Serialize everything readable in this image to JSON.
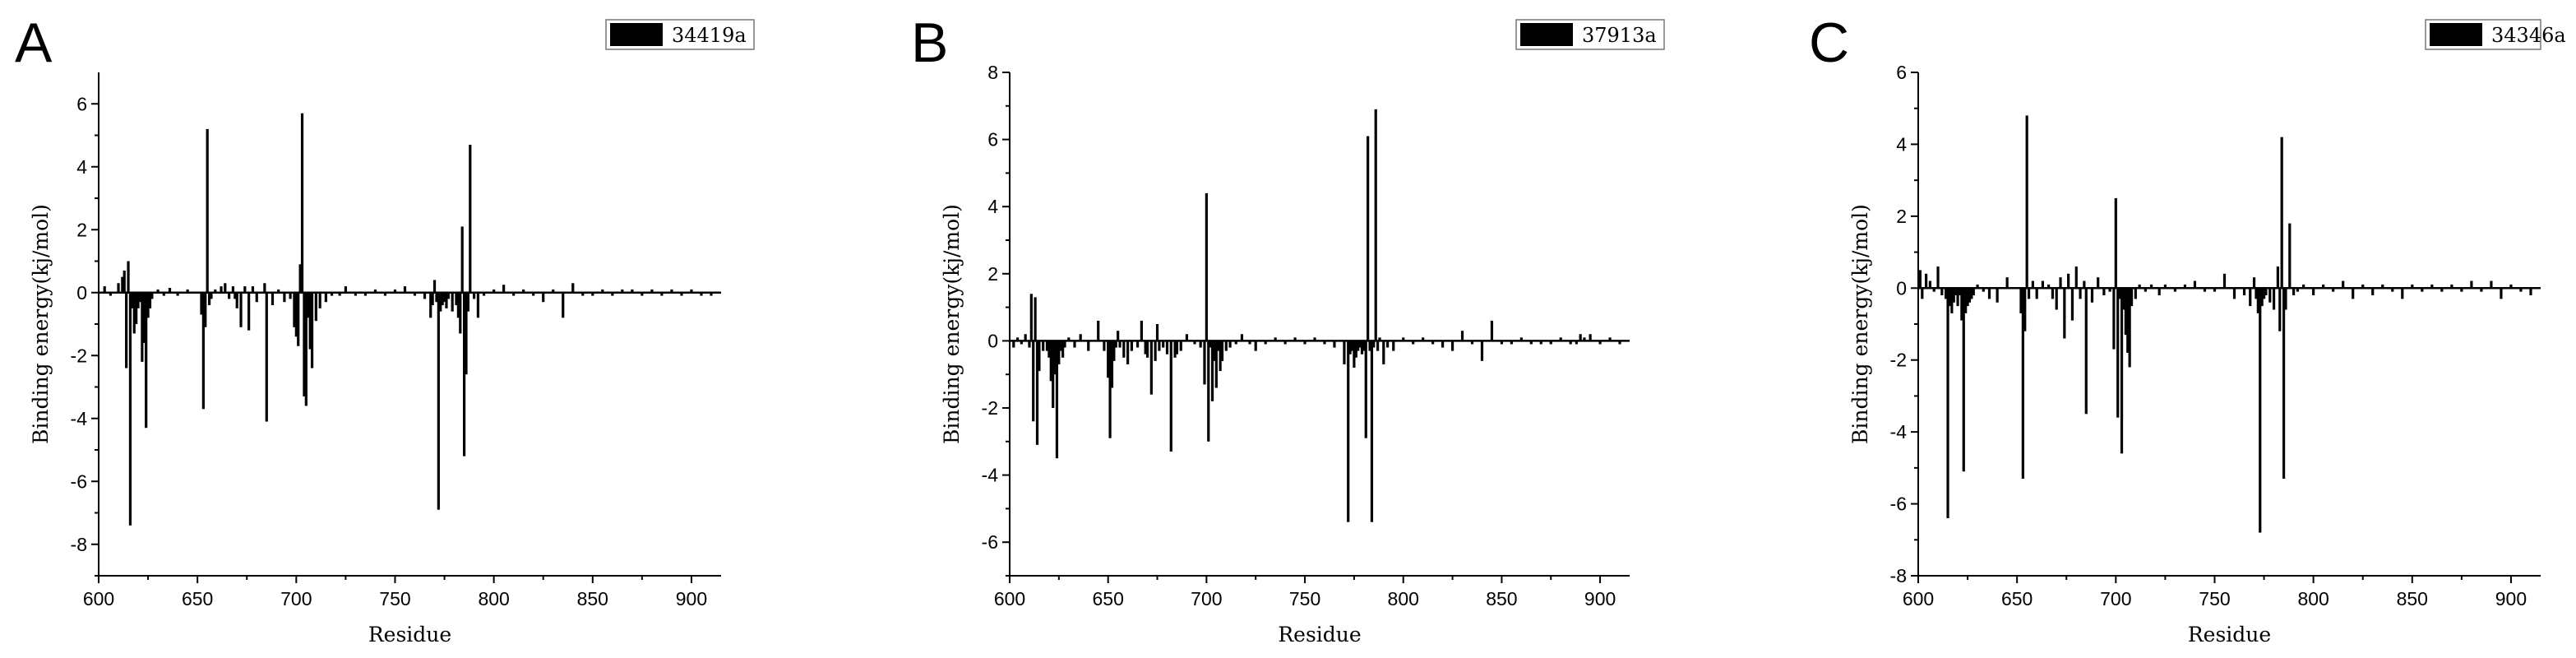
{
  "chart_data": [
    {
      "type": "bar",
      "panel": "A",
      "legend": "34419a",
      "xlabel": "Residue",
      "ylabel": "Binding energy(kj/mol)",
      "xlim": [
        600,
        915
      ],
      "ylim": [
        -9,
        7
      ],
      "xticks": [
        600,
        650,
        700,
        750,
        800,
        850,
        900
      ],
      "yticks": [
        -8,
        -6,
        -4,
        -2,
        0,
        2,
        4,
        6
      ],
      "x": [
        603,
        606,
        610,
        612,
        613,
        614,
        615,
        616,
        617,
        618,
        619,
        620,
        621,
        622,
        623,
        624,
        625,
        626,
        627,
        630,
        633,
        636,
        640,
        645,
        652,
        653,
        654,
        655,
        656,
        657,
        659,
        662,
        664,
        666,
        668,
        669,
        670,
        672,
        674,
        676,
        678,
        680,
        684,
        685,
        688,
        691,
        694,
        697,
        699,
        700,
        701,
        702,
        703,
        704,
        705,
        706,
        707,
        708,
        710,
        712,
        715,
        718,
        722,
        725,
        730,
        735,
        740,
        745,
        750,
        755,
        760,
        765,
        768,
        769,
        770,
        771,
        772,
        773,
        774,
        775,
        776,
        777,
        779,
        781,
        782,
        783,
        784,
        785,
        786,
        787,
        788,
        790,
        792,
        795,
        800,
        805,
        810,
        815,
        820,
        825,
        830,
        835,
        840,
        845,
        850,
        855,
        860,
        865,
        870,
        875,
        880,
        885,
        890,
        895,
        900,
        905,
        910
      ],
      "values": [
        0.2,
        -0.1,
        0.3,
        0.5,
        0.7,
        -2.4,
        1.0,
        -7.4,
        -0.5,
        -1.3,
        -1.0,
        -0.5,
        -0.3,
        -2.2,
        -1.6,
        -4.3,
        -0.8,
        -0.5,
        -0.2,
        0.1,
        -0.1,
        0.15,
        -0.1,
        0.1,
        -0.7,
        -3.7,
        -1.1,
        5.2,
        -0.4,
        -0.2,
        0.1,
        0.2,
        0.3,
        -0.2,
        0.2,
        -0.2,
        -0.5,
        -1.1,
        0.2,
        -1.2,
        0.2,
        -0.3,
        0.3,
        -4.1,
        -0.4,
        0.1,
        -0.3,
        -0.2,
        -1.1,
        -1.4,
        -1.7,
        0.9,
        5.7,
        -3.3,
        -3.6,
        -0.8,
        -1.8,
        -2.4,
        -0.9,
        -0.5,
        -0.3,
        -0.1,
        -0.1,
        0.2,
        -0.1,
        -0.1,
        0.1,
        -0.1,
        0.1,
        0.2,
        -0.1,
        -0.2,
        -0.8,
        -0.4,
        0.4,
        -0.3,
        -6.9,
        -0.6,
        -0.4,
        -0.3,
        -0.5,
        -0.2,
        -0.6,
        -0.4,
        -0.8,
        -1.3,
        2.1,
        -5.2,
        -2.6,
        -0.6,
        4.7,
        -0.2,
        -0.8,
        -0.1,
        0.1,
        0.25,
        -0.1,
        0.1,
        -0.1,
        -0.3,
        0.1,
        -0.8,
        0.3,
        -0.1,
        -0.1,
        0.1,
        -0.1,
        0.1,
        0.1,
        -0.1,
        0.1,
        -0.1,
        0.1,
        -0.1,
        0.1,
        -0.1,
        -0.1
      ]
    },
    {
      "type": "bar",
      "panel": "B",
      "legend": "37913a",
      "xlabel": "Residue",
      "ylabel": "Binding energy(kj/mol)",
      "xlim": [
        600,
        915
      ],
      "ylim": [
        -7,
        8
      ],
      "xticks": [
        600,
        650,
        700,
        750,
        800,
        850,
        900
      ],
      "yticks": [
        -6,
        -4,
        -2,
        0,
        2,
        4,
        6,
        8
      ],
      "x": [
        602,
        604,
        606,
        608,
        610,
        611,
        612,
        613,
        614,
        615,
        617,
        619,
        620,
        621,
        622,
        623,
        624,
        625,
        626,
        627,
        628,
        630,
        633,
        636,
        640,
        645,
        648,
        650,
        651,
        652,
        653,
        654,
        655,
        656,
        658,
        660,
        662,
        665,
        667,
        669,
        670,
        672,
        674,
        675,
        676,
        678,
        680,
        682,
        684,
        685,
        687,
        690,
        694,
        697,
        699,
        700,
        701,
        702,
        703,
        704,
        705,
        706,
        707,
        708,
        710,
        712,
        715,
        718,
        722,
        725,
        730,
        735,
        740,
        745,
        750,
        755,
        760,
        765,
        770,
        772,
        773,
        774,
        775,
        776,
        777,
        778,
        779,
        780,
        781,
        782,
        783,
        784,
        785,
        786,
        787,
        788,
        790,
        792,
        795,
        800,
        805,
        810,
        815,
        820,
        825,
        830,
        835,
        840,
        845,
        850,
        855,
        860,
        865,
        870,
        875,
        880,
        885,
        888,
        890,
        892,
        895,
        900,
        905,
        910
      ],
      "values": [
        -0.2,
        0.1,
        -0.1,
        0.2,
        -0.2,
        1.4,
        -2.4,
        1.3,
        -3.1,
        -0.9,
        -0.3,
        -0.3,
        -0.5,
        -1.2,
        -2.0,
        -1.0,
        -3.5,
        -0.7,
        -0.3,
        -0.5,
        -0.2,
        0.1,
        -0.2,
        0.2,
        -0.3,
        0.6,
        -0.3,
        -1.1,
        -2.9,
        -1.4,
        -0.6,
        -0.2,
        0.3,
        -0.2,
        -0.5,
        -0.7,
        -0.3,
        -0.2,
        0.6,
        -0.4,
        -0.5,
        -1.6,
        -0.6,
        0.5,
        -0.3,
        -0.2,
        -0.4,
        -3.3,
        -0.5,
        -0.4,
        -0.3,
        0.2,
        -0.1,
        -0.2,
        -1.3,
        4.4,
        -3.0,
        -0.2,
        -1.8,
        -0.6,
        -1.4,
        -0.3,
        -0.9,
        -0.6,
        -0.3,
        -0.2,
        -0.1,
        0.2,
        -0.1,
        -0.3,
        -0.1,
        0.1,
        -0.1,
        0.1,
        -0.1,
        0.1,
        -0.1,
        -0.2,
        -0.7,
        -5.4,
        -0.4,
        -0.3,
        -0.8,
        -0.5,
        -0.3,
        -0.2,
        -0.4,
        -0.3,
        -2.9,
        6.1,
        -0.3,
        -5.4,
        -0.2,
        6.9,
        -0.3,
        0.1,
        -0.7,
        -0.2,
        -0.3,
        0.1,
        -0.1,
        0.1,
        -0.1,
        -0.2,
        -0.3,
        0.3,
        -0.1,
        -0.6,
        0.6,
        -0.1,
        -0.1,
        0.1,
        -0.1,
        -0.1,
        -0.1,
        0.1,
        -0.1,
        -0.1,
        0.2,
        0.1,
        0.2,
        -0.1,
        0.1,
        -0.1
      ]
    },
    {
      "type": "bar",
      "panel": "C",
      "legend": "34346a",
      "xlabel": "Residue",
      "ylabel": "Binding energy(kj/mol)",
      "xlim": [
        600,
        915
      ],
      "ylim": [
        -8,
        6
      ],
      "xticks": [
        600,
        650,
        700,
        750,
        800,
        850,
        900
      ],
      "yticks": [
        -8,
        -6,
        -4,
        -2,
        0,
        2,
        4,
        6
      ],
      "x": [
        601,
        602,
        604,
        606,
        608,
        610,
        612,
        614,
        615,
        616,
        617,
        618,
        619,
        620,
        621,
        622,
        623,
        624,
        625,
        626,
        627,
        628,
        630,
        633,
        636,
        640,
        645,
        652,
        653,
        654,
        655,
        656,
        658,
        660,
        663,
        666,
        668,
        670,
        672,
        674,
        676,
        678,
        680,
        682,
        684,
        685,
        688,
        691,
        694,
        697,
        699,
        700,
        701,
        702,
        703,
        704,
        705,
        706,
        707,
        708,
        710,
        712,
        715,
        718,
        722,
        725,
        730,
        735,
        740,
        745,
        750,
        755,
        760,
        765,
        768,
        770,
        771,
        772,
        773,
        774,
        775,
        776,
        778,
        780,
        782,
        783,
        784,
        785,
        786,
        788,
        790,
        792,
        795,
        800,
        805,
        810,
        815,
        820,
        825,
        830,
        835,
        840,
        845,
        850,
        855,
        860,
        865,
        870,
        875,
        880,
        885,
        890,
        895,
        900,
        905,
        910
      ],
      "values": [
        0.5,
        -0.3,
        0.4,
        0.2,
        -0.1,
        0.6,
        -0.2,
        -0.3,
        -6.4,
        -0.5,
        -0.7,
        -0.4,
        -0.2,
        -0.5,
        -0.2,
        -0.9,
        -5.1,
        -0.7,
        -0.5,
        -0.4,
        -0.3,
        -0.2,
        0.1,
        -0.1,
        -0.3,
        -0.4,
        0.3,
        -0.7,
        -5.3,
        -1.2,
        4.8,
        -0.3,
        0.2,
        -0.3,
        0.2,
        0.1,
        -0.3,
        -0.6,
        0.3,
        -1.4,
        0.4,
        -0.9,
        0.6,
        -0.3,
        0.2,
        -3.5,
        -0.4,
        0.3,
        -0.2,
        -0.1,
        -1.7,
        2.5,
        -3.6,
        -0.3,
        -4.6,
        -0.6,
        -1.3,
        -1.8,
        -2.2,
        -0.5,
        -0.3,
        0.1,
        -0.1,
        0.1,
        -0.2,
        0.1,
        -0.1,
        0.1,
        0.2,
        -0.1,
        -0.1,
        0.4,
        -0.3,
        -0.2,
        -0.5,
        0.3,
        -0.3,
        -0.7,
        -6.8,
        -0.5,
        -0.3,
        -0.2,
        -0.4,
        -0.6,
        0.6,
        -1.2,
        4.2,
        -5.3,
        -0.6,
        1.8,
        -0.2,
        -0.1,
        0.1,
        -0.2,
        0.1,
        -0.1,
        0.2,
        -0.3,
        0.1,
        -0.2,
        0.1,
        -0.1,
        -0.3,
        0.1,
        -0.1,
        0.1,
        -0.1,
        0.1,
        -0.1,
        0.2,
        -0.1,
        0.2,
        -0.3,
        0.1,
        -0.1,
        -0.2
      ]
    }
  ]
}
